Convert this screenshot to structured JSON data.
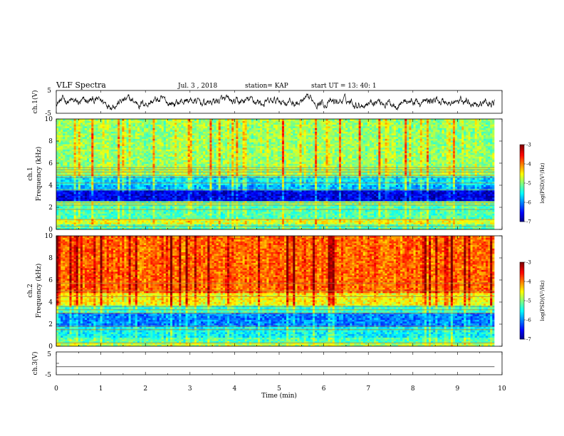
{
  "header": {
    "title": "VLF Spectra",
    "date": "Jul. 3 , 2018",
    "station": "station= KAP",
    "start": "start UT = 13: 40: 1"
  },
  "chart_data": [
    {
      "type": "line",
      "panel": "ch1-waveform",
      "ylabel": "ch.1(V)",
      "ylim": [
        -5,
        5
      ],
      "yticks": [
        5,
        -5
      ],
      "xlim": [
        0,
        10
      ],
      "description_values": {
        "mean": 0,
        "amplitude_approx": 2
      }
    },
    {
      "type": "heatmap",
      "panel": "ch1-spectrogram",
      "ylabel": "ch.1\nFrequency (kHz)",
      "ylim": [
        0,
        10
      ],
      "yticks": [
        0,
        2,
        4,
        6,
        8,
        10
      ],
      "xlim": [
        0,
        10
      ],
      "data_end_min": 9.83,
      "bands": [
        {
          "f": [
            0.0,
            0.5
          ],
          "level": -5.2
        },
        {
          "f": [
            0.5,
            1.0
          ],
          "level": -4.6
        },
        {
          "f": [
            1.0,
            2.2
          ],
          "level": -5.2
        },
        {
          "f": [
            2.2,
            2.6
          ],
          "level": -5.0
        },
        {
          "f": [
            2.6,
            3.5
          ],
          "level": -6.6
        },
        {
          "f": [
            3.5,
            4.1
          ],
          "level": -5.8
        },
        {
          "f": [
            4.1,
            4.8
          ],
          "level": -5.6
        },
        {
          "f": [
            4.8,
            5.6
          ],
          "level": -4.9
        },
        {
          "f": [
            5.6,
            10.0
          ],
          "level": -4.9
        }
      ],
      "lines_khz": [
        0.3,
        0.9,
        1.8,
        2.2,
        2.4,
        3.6,
        4.2,
        4.7,
        4.9,
        5.2,
        5.4,
        5.6
      ]
    },
    {
      "type": "heatmap",
      "panel": "ch2-spectrogram",
      "ylabel": "ch.2\nFrequency (kHz)",
      "ylim": [
        0,
        10
      ],
      "yticks": [
        0,
        2,
        4,
        6,
        8,
        10
      ],
      "xlim": [
        0,
        10
      ],
      "data_end_min": 9.83,
      "bands": [
        {
          "f": [
            0.0,
            0.4
          ],
          "level": -4.8
        },
        {
          "f": [
            0.4,
            0.8
          ],
          "level": -5.2
        },
        {
          "f": [
            0.8,
            1.8
          ],
          "level": -5.5
        },
        {
          "f": [
            1.8,
            3.0
          ],
          "level": -6.0
        },
        {
          "f": [
            3.0,
            3.7
          ],
          "level": -5.3
        },
        {
          "f": [
            3.7,
            4.9
          ],
          "level": -4.5
        },
        {
          "f": [
            4.9,
            10.0
          ],
          "level": -3.9
        }
      ],
      "lines_khz": [
        0.3,
        1.5,
        1.8,
        3.0,
        3.3,
        3.6,
        4.5,
        5.0,
        5.7
      ]
    },
    {
      "type": "line",
      "panel": "ch3-waveform",
      "ylabel": "ch.3(V)",
      "ylim": [
        -5,
        5
      ],
      "yticks": [
        5,
        0,
        -5
      ],
      "xlim": [
        0,
        10
      ],
      "constant_value": -1.5
    }
  ],
  "colorbar": {
    "label": "log(PSD)(V²/Hz)",
    "range": [
      -7,
      -3
    ],
    "ticks": [
      "-3",
      "-4",
      "-5",
      "-6",
      "-7"
    ]
  },
  "xaxis": {
    "label": "Time (min)",
    "ticks": [
      "0",
      "1",
      "2",
      "3",
      "4",
      "5",
      "6",
      "7",
      "8",
      "9",
      "10"
    ]
  }
}
